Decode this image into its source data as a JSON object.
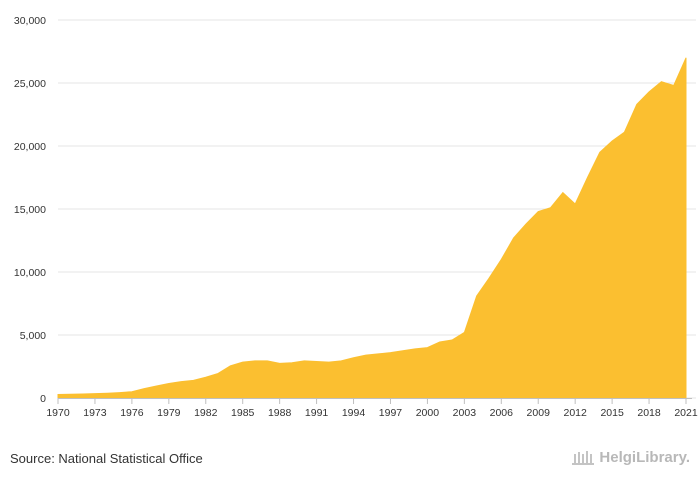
{
  "chart_data": {
    "type": "area",
    "x": [
      1970,
      1971,
      1972,
      1973,
      1974,
      1975,
      1976,
      1977,
      1978,
      1979,
      1980,
      1981,
      1982,
      1983,
      1984,
      1985,
      1986,
      1987,
      1988,
      1989,
      1990,
      1991,
      1992,
      1993,
      1994,
      1995,
      1996,
      1997,
      1998,
      1999,
      2000,
      2001,
      2002,
      2003,
      2004,
      2005,
      2006,
      2007,
      2008,
      2009,
      2010,
      2011,
      2012,
      2013,
      2014,
      2015,
      2016,
      2017,
      2018,
      2019,
      2020,
      2021
    ],
    "values": [
      280,
      300,
      320,
      350,
      380,
      430,
      500,
      750,
      950,
      1150,
      1300,
      1400,
      1650,
      1950,
      2550,
      2850,
      2950,
      2950,
      2750,
      2800,
      2950,
      2900,
      2850,
      2950,
      3200,
      3400,
      3500,
      3600,
      3750,
      3900,
      4000,
      4450,
      4600,
      5200,
      8100,
      9500,
      11000,
      12700,
      13800,
      14800,
      15100,
      16300,
      15400,
      17500,
      19500,
      20400,
      21100,
      23300,
      24300,
      25100,
      24800,
      27000
    ],
    "xticks": [
      "1970",
      "1973",
      "1976",
      "1979",
      "1982",
      "1985",
      "1988",
      "1991",
      "1994",
      "1997",
      "2000",
      "2003",
      "2006",
      "2009",
      "2012",
      "2015",
      "2018",
      "2021"
    ],
    "yticks": [
      "0",
      "5,000",
      "10,000",
      "15,000",
      "20,000",
      "25,000",
      "30,000"
    ],
    "ylim": [
      0,
      30000
    ],
    "xlim": [
      1970,
      2021
    ],
    "grid": true,
    "color": "#fbbf30"
  },
  "footer": {
    "source": "Source: National Statistical Office",
    "brand": "HelgiLibrary."
  }
}
